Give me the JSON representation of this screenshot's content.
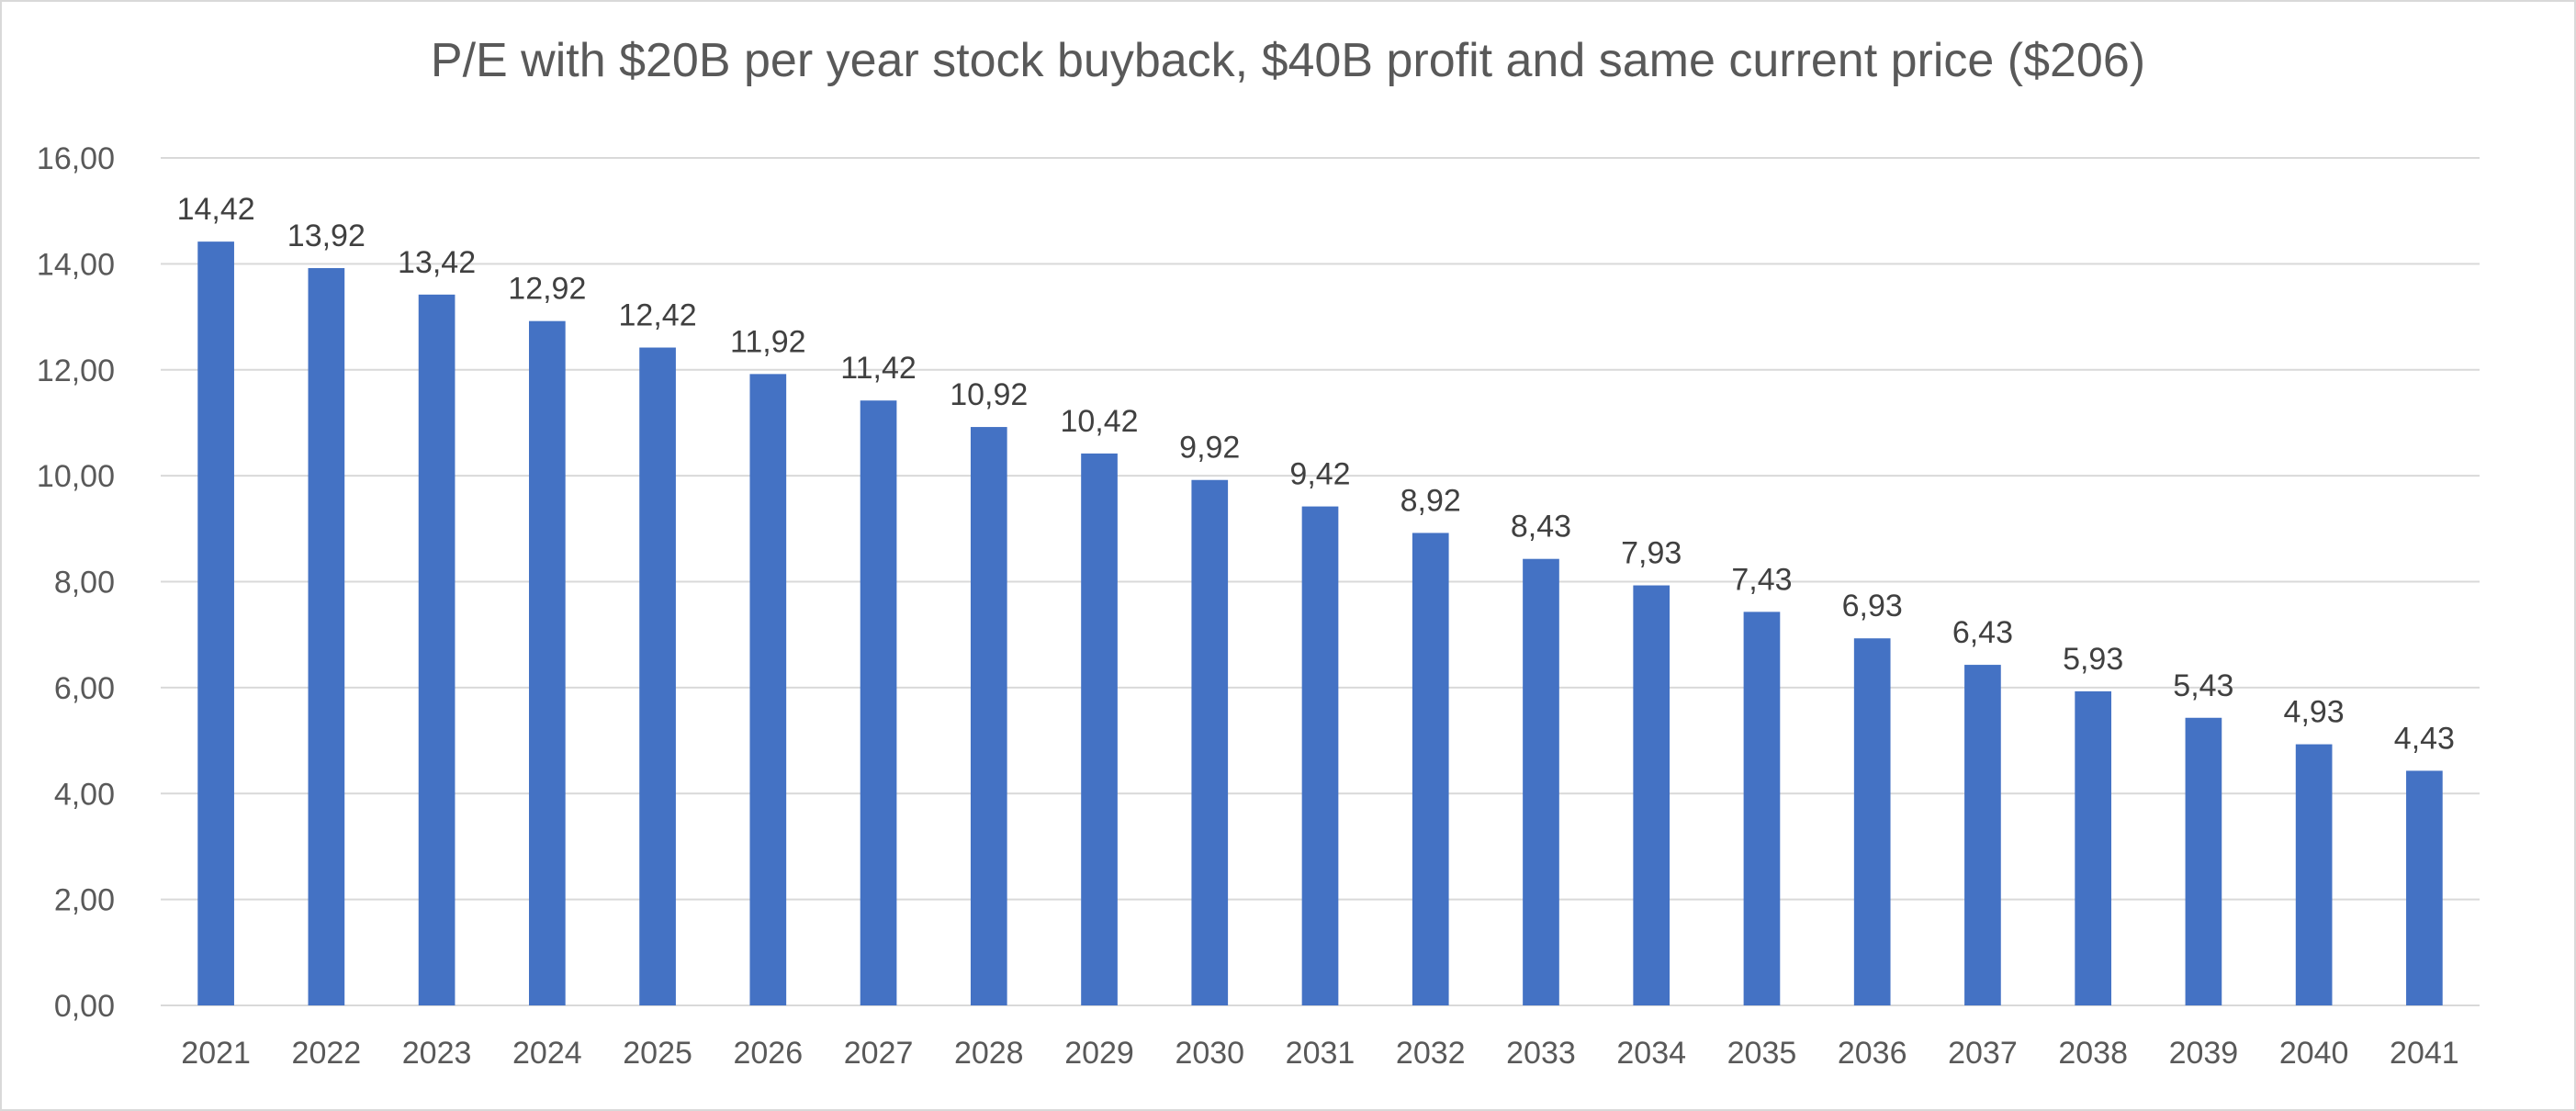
{
  "chart_data": {
    "type": "bar",
    "title": "P/E with $20B per year stock buyback, $40B profit and same current price ($206)",
    "xlabel": "",
    "ylabel": "",
    "ylim": [
      0,
      16
    ],
    "ytick_step": 2,
    "grid": true,
    "legend": "none",
    "bar_color": "#4472C4",
    "grid_color": "#d9d9d9",
    "decimal_separator": ",",
    "categories": [
      "2021",
      "2022",
      "2023",
      "2024",
      "2025",
      "2026",
      "2027",
      "2028",
      "2029",
      "2030",
      "2031",
      "2032",
      "2033",
      "2034",
      "2035",
      "2036",
      "2037",
      "2038",
      "2039",
      "2040",
      "2041"
    ],
    "values": [
      14.42,
      13.92,
      13.42,
      12.92,
      12.42,
      11.92,
      11.42,
      10.92,
      10.42,
      9.92,
      9.42,
      8.92,
      8.43,
      7.93,
      7.43,
      6.93,
      6.43,
      5.93,
      5.43,
      4.93,
      4.43
    ]
  }
}
